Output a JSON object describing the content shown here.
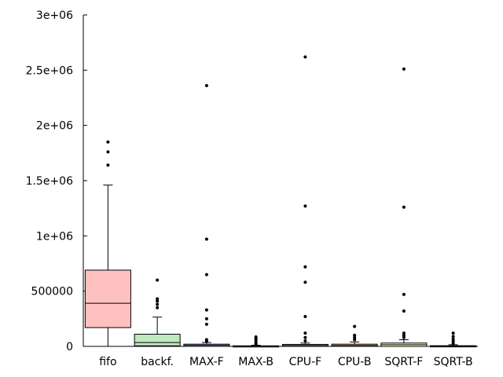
{
  "chart_data": {
    "type": "box",
    "title": "",
    "xlabel": "",
    "ylabel": "",
    "ylim": [
      0,
      3000000
    ],
    "y_ticks": [
      0,
      500000,
      1000000,
      1500000,
      2000000,
      2500000,
      3000000
    ],
    "y_tick_labels": [
      "0",
      "500000",
      "1e+06",
      "1.5e+06",
      "2e+06",
      "2.5e+06",
      "3e+06"
    ],
    "grid": false,
    "categories": [
      "fifo",
      "backf.",
      "MAX-F",
      "MAX-B",
      "CPU-F",
      "CPU-B",
      "SQRT-F",
      "SQRT-B"
    ],
    "boxes": [
      {
        "name": "fifo",
        "color": "#ffc0c0",
        "whisker_low": 0,
        "q1": 170000,
        "median": 390000,
        "q3": 690000,
        "whisker_high": 1460000,
        "outliers": [
          1640000,
          1760000,
          1850000
        ]
      },
      {
        "name": "backf.",
        "color": "#c0e8c0",
        "whisker_low": 0,
        "q1": 5000,
        "median": 35000,
        "q3": 110000,
        "whisker_high": 265000,
        "outliers": [
          350000,
          380000,
          410000,
          430000,
          600000
        ]
      },
      {
        "name": "MAX-F",
        "color": "#c0d0ff",
        "whisker_low": 0,
        "q1": 0,
        "median": 10000,
        "q3": 20000,
        "whisker_high": 35000,
        "outliers": [
          45000,
          60000,
          200000,
          250000,
          330000,
          650000,
          970000,
          2360000
        ]
      },
      {
        "name": "MAX-B",
        "color": "#ffffc0",
        "whisker_low": 0,
        "q1": 0,
        "median": 2000,
        "q3": 5000,
        "whisker_high": 10000,
        "outliers": [
          20000,
          35000,
          55000,
          70000,
          85000
        ]
      },
      {
        "name": "CPU-F",
        "color": "#c0f0f0",
        "whisker_low": 0,
        "q1": 0,
        "median": 8000,
        "q3": 18000,
        "whisker_high": 30000,
        "outliers": [
          50000,
          80000,
          120000,
          270000,
          580000,
          720000,
          1270000,
          2620000
        ]
      },
      {
        "name": "CPU-B",
        "color": "#ffd8b0",
        "whisker_low": 0,
        "q1": 0,
        "median": 8000,
        "q3": 20000,
        "whisker_high": 40000,
        "outliers": [
          60000,
          80000,
          100000,
          180000
        ]
      },
      {
        "name": "SQRT-F",
        "color": "#ffffc0",
        "whisker_low": 0,
        "q1": 0,
        "median": 15000,
        "q3": 30000,
        "whisker_high": 60000,
        "outliers": [
          80000,
          100000,
          120000,
          320000,
          470000,
          1260000,
          2510000
        ]
      },
      {
        "name": "SQRT-B",
        "color": "#e0e0e0",
        "whisker_low": 0,
        "q1": 0,
        "median": 2000,
        "q3": 6000,
        "whisker_high": 15000,
        "outliers": [
          25000,
          45000,
          65000,
          90000,
          120000
        ]
      }
    ]
  }
}
